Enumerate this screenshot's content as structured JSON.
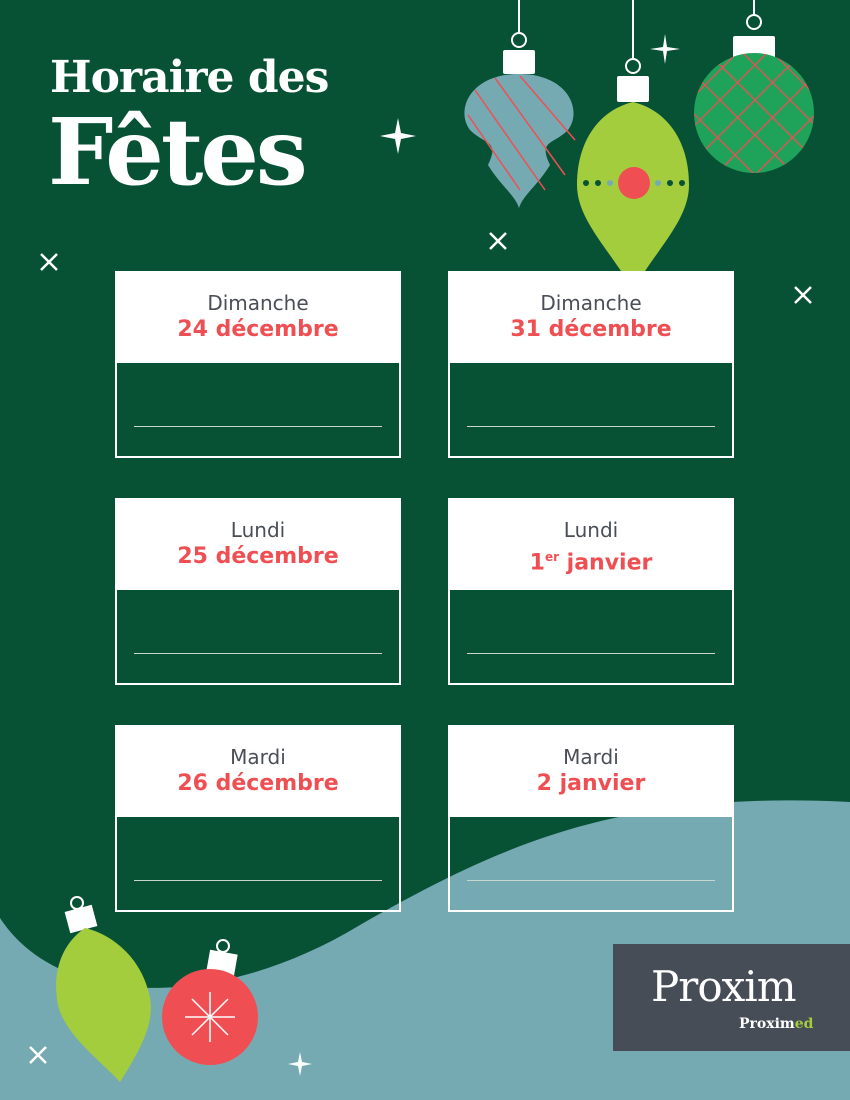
{
  "title": {
    "line1": "Horaire des",
    "line2": "Fêtes"
  },
  "schedule": [
    {
      "day": "Dimanche",
      "date": "24 décembre"
    },
    {
      "day": "Dimanche",
      "date": "31 décembre"
    },
    {
      "day": "Lundi",
      "date": "25 décembre"
    },
    {
      "day": "Lundi",
      "date_num": "1",
      "date_sup": "er",
      "date_rest": " janvier"
    },
    {
      "day": "Mardi",
      "date": "26 décembre"
    },
    {
      "day": "Mardi",
      "date": "2 janvier"
    }
  ],
  "logo": {
    "main": "Proxim",
    "sub_a": "Proxim",
    "sub_b": "ed"
  },
  "colors": {
    "background": "#075235",
    "wave": "#76aab2",
    "accent_red": "#ef4f53",
    "lime": "#a4cd3d",
    "logo_bg": "#474d56"
  }
}
